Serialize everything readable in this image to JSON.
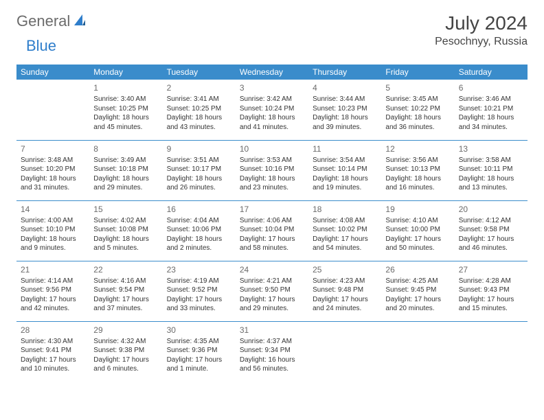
{
  "logo": {
    "text_general": "General",
    "text_blue": "Blue",
    "icon_color": "#2f7ecb"
  },
  "header": {
    "month_title": "July 2024",
    "location": "Pesochnyy, Russia"
  },
  "colors": {
    "header_bg": "#3a8ccb",
    "header_text": "#ffffff",
    "border": "#3a8ccb",
    "day_number": "#6b6b6b",
    "body_text": "#333333",
    "logo_gray": "#6b6b6b",
    "logo_blue": "#2f7ecb"
  },
  "weekdays": [
    "Sunday",
    "Monday",
    "Tuesday",
    "Wednesday",
    "Thursday",
    "Friday",
    "Saturday"
  ],
  "weeks": [
    [
      null,
      {
        "n": "1",
        "sunrise": "Sunrise: 3:40 AM",
        "sunset": "Sunset: 10:25 PM",
        "daylight1": "Daylight: 18 hours",
        "daylight2": "and 45 minutes."
      },
      {
        "n": "2",
        "sunrise": "Sunrise: 3:41 AM",
        "sunset": "Sunset: 10:25 PM",
        "daylight1": "Daylight: 18 hours",
        "daylight2": "and 43 minutes."
      },
      {
        "n": "3",
        "sunrise": "Sunrise: 3:42 AM",
        "sunset": "Sunset: 10:24 PM",
        "daylight1": "Daylight: 18 hours",
        "daylight2": "and 41 minutes."
      },
      {
        "n": "4",
        "sunrise": "Sunrise: 3:44 AM",
        "sunset": "Sunset: 10:23 PM",
        "daylight1": "Daylight: 18 hours",
        "daylight2": "and 39 minutes."
      },
      {
        "n": "5",
        "sunrise": "Sunrise: 3:45 AM",
        "sunset": "Sunset: 10:22 PM",
        "daylight1": "Daylight: 18 hours",
        "daylight2": "and 36 minutes."
      },
      {
        "n": "6",
        "sunrise": "Sunrise: 3:46 AM",
        "sunset": "Sunset: 10:21 PM",
        "daylight1": "Daylight: 18 hours",
        "daylight2": "and 34 minutes."
      }
    ],
    [
      {
        "n": "7",
        "sunrise": "Sunrise: 3:48 AM",
        "sunset": "Sunset: 10:20 PM",
        "daylight1": "Daylight: 18 hours",
        "daylight2": "and 31 minutes."
      },
      {
        "n": "8",
        "sunrise": "Sunrise: 3:49 AM",
        "sunset": "Sunset: 10:18 PM",
        "daylight1": "Daylight: 18 hours",
        "daylight2": "and 29 minutes."
      },
      {
        "n": "9",
        "sunrise": "Sunrise: 3:51 AM",
        "sunset": "Sunset: 10:17 PM",
        "daylight1": "Daylight: 18 hours",
        "daylight2": "and 26 minutes."
      },
      {
        "n": "10",
        "sunrise": "Sunrise: 3:53 AM",
        "sunset": "Sunset: 10:16 PM",
        "daylight1": "Daylight: 18 hours",
        "daylight2": "and 23 minutes."
      },
      {
        "n": "11",
        "sunrise": "Sunrise: 3:54 AM",
        "sunset": "Sunset: 10:14 PM",
        "daylight1": "Daylight: 18 hours",
        "daylight2": "and 19 minutes."
      },
      {
        "n": "12",
        "sunrise": "Sunrise: 3:56 AM",
        "sunset": "Sunset: 10:13 PM",
        "daylight1": "Daylight: 18 hours",
        "daylight2": "and 16 minutes."
      },
      {
        "n": "13",
        "sunrise": "Sunrise: 3:58 AM",
        "sunset": "Sunset: 10:11 PM",
        "daylight1": "Daylight: 18 hours",
        "daylight2": "and 13 minutes."
      }
    ],
    [
      {
        "n": "14",
        "sunrise": "Sunrise: 4:00 AM",
        "sunset": "Sunset: 10:10 PM",
        "daylight1": "Daylight: 18 hours",
        "daylight2": "and 9 minutes."
      },
      {
        "n": "15",
        "sunrise": "Sunrise: 4:02 AM",
        "sunset": "Sunset: 10:08 PM",
        "daylight1": "Daylight: 18 hours",
        "daylight2": "and 5 minutes."
      },
      {
        "n": "16",
        "sunrise": "Sunrise: 4:04 AM",
        "sunset": "Sunset: 10:06 PM",
        "daylight1": "Daylight: 18 hours",
        "daylight2": "and 2 minutes."
      },
      {
        "n": "17",
        "sunrise": "Sunrise: 4:06 AM",
        "sunset": "Sunset: 10:04 PM",
        "daylight1": "Daylight: 17 hours",
        "daylight2": "and 58 minutes."
      },
      {
        "n": "18",
        "sunrise": "Sunrise: 4:08 AM",
        "sunset": "Sunset: 10:02 PM",
        "daylight1": "Daylight: 17 hours",
        "daylight2": "and 54 minutes."
      },
      {
        "n": "19",
        "sunrise": "Sunrise: 4:10 AM",
        "sunset": "Sunset: 10:00 PM",
        "daylight1": "Daylight: 17 hours",
        "daylight2": "and 50 minutes."
      },
      {
        "n": "20",
        "sunrise": "Sunrise: 4:12 AM",
        "sunset": "Sunset: 9:58 PM",
        "daylight1": "Daylight: 17 hours",
        "daylight2": "and 46 minutes."
      }
    ],
    [
      {
        "n": "21",
        "sunrise": "Sunrise: 4:14 AM",
        "sunset": "Sunset: 9:56 PM",
        "daylight1": "Daylight: 17 hours",
        "daylight2": "and 42 minutes."
      },
      {
        "n": "22",
        "sunrise": "Sunrise: 4:16 AM",
        "sunset": "Sunset: 9:54 PM",
        "daylight1": "Daylight: 17 hours",
        "daylight2": "and 37 minutes."
      },
      {
        "n": "23",
        "sunrise": "Sunrise: 4:19 AM",
        "sunset": "Sunset: 9:52 PM",
        "daylight1": "Daylight: 17 hours",
        "daylight2": "and 33 minutes."
      },
      {
        "n": "24",
        "sunrise": "Sunrise: 4:21 AM",
        "sunset": "Sunset: 9:50 PM",
        "daylight1": "Daylight: 17 hours",
        "daylight2": "and 29 minutes."
      },
      {
        "n": "25",
        "sunrise": "Sunrise: 4:23 AM",
        "sunset": "Sunset: 9:48 PM",
        "daylight1": "Daylight: 17 hours",
        "daylight2": "and 24 minutes."
      },
      {
        "n": "26",
        "sunrise": "Sunrise: 4:25 AM",
        "sunset": "Sunset: 9:45 PM",
        "daylight1": "Daylight: 17 hours",
        "daylight2": "and 20 minutes."
      },
      {
        "n": "27",
        "sunrise": "Sunrise: 4:28 AM",
        "sunset": "Sunset: 9:43 PM",
        "daylight1": "Daylight: 17 hours",
        "daylight2": "and 15 minutes."
      }
    ],
    [
      {
        "n": "28",
        "sunrise": "Sunrise: 4:30 AM",
        "sunset": "Sunset: 9:41 PM",
        "daylight1": "Daylight: 17 hours",
        "daylight2": "and 10 minutes."
      },
      {
        "n": "29",
        "sunrise": "Sunrise: 4:32 AM",
        "sunset": "Sunset: 9:38 PM",
        "daylight1": "Daylight: 17 hours",
        "daylight2": "and 6 minutes."
      },
      {
        "n": "30",
        "sunrise": "Sunrise: 4:35 AM",
        "sunset": "Sunset: 9:36 PM",
        "daylight1": "Daylight: 17 hours",
        "daylight2": "and 1 minute."
      },
      {
        "n": "31",
        "sunrise": "Sunrise: 4:37 AM",
        "sunset": "Sunset: 9:34 PM",
        "daylight1": "Daylight: 16 hours",
        "daylight2": "and 56 minutes."
      },
      null,
      null,
      null
    ]
  ]
}
